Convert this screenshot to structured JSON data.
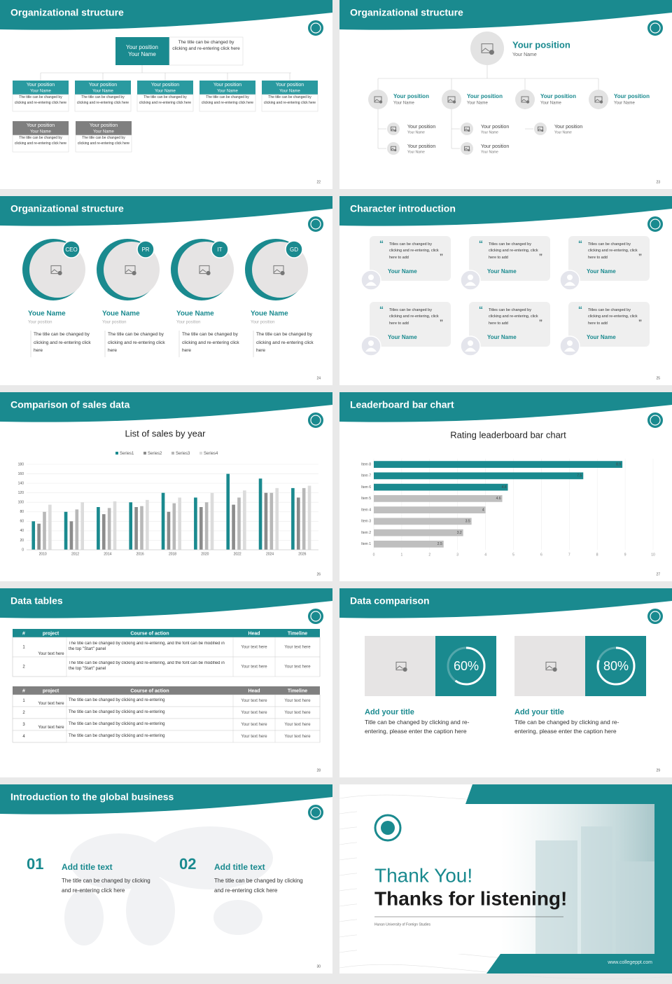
{
  "slides": [
    {
      "title": "Organizational structure",
      "page": 22,
      "head": {
        "position": "Your position",
        "name": "Your Name",
        "note": "The title can be changed by clicking and re-entering click here"
      },
      "teal_boxes": [
        {
          "position": "Your position",
          "name": "Your Name",
          "text": "The title can be changed by clicking and re-entering click here"
        },
        {
          "position": "Your position",
          "name": "Your Name",
          "text": "The title can be changed by clicking and re-entering click here"
        },
        {
          "position": "Your position",
          "name": "Your Name",
          "text": "The title can be changed by clicking and re-entering click here"
        },
        {
          "position": "Your position",
          "name": "Your Name",
          "text": "The title can be changed by clicking and re-entering click here"
        },
        {
          "position": "Your position",
          "name": "Your Name",
          "text": "The title can be changed by clicking and re-entering click here"
        }
      ],
      "gray_boxes": [
        {
          "position": "Your position",
          "name": "Your Name",
          "text": "The title can be changed by clicking and re-entering click here"
        },
        {
          "position": "Your position",
          "name": "Your Name",
          "text": "The title can be changed by clicking and re-entering click here"
        }
      ]
    },
    {
      "title": "Organizational structure",
      "page": 23,
      "head": {
        "position": "Your position",
        "name": "Your Name"
      },
      "level1": [
        {
          "position": "Your position",
          "name": "Your Name"
        },
        {
          "position": "Your position",
          "name": "Your Name"
        },
        {
          "position": "Your position",
          "name": "Your Name"
        },
        {
          "position": "Your position",
          "name": "Your Name"
        }
      ],
      "level2": [
        {
          "position": "Your position",
          "name": "Your Name"
        },
        {
          "position": "Your position",
          "name": "Your Name"
        },
        {
          "position": "Your position",
          "name": "Your Name"
        },
        {
          "position": "Your position",
          "name": "Your Name"
        },
        {
          "position": "Your position",
          "name": "Your Name"
        }
      ]
    },
    {
      "title": "Organizational structure",
      "page": 24,
      "people": [
        {
          "tag": "CEO",
          "name": "Youe Name",
          "position": "Your position",
          "text": "The title can be changed by clicking and re-entering click here"
        },
        {
          "tag": "PR",
          "name": "Youe Name",
          "position": "Your position",
          "text": "The title can be changed by clicking and re-entering click here"
        },
        {
          "tag": "IT",
          "name": "Youe Name",
          "position": "Your position",
          "text": "The title can be changed by clicking and re-entering click here"
        },
        {
          "tag": "GD",
          "name": "Youe Name",
          "position": "Your position",
          "text": "The title can be changed by clicking and re-entering click here"
        }
      ]
    },
    {
      "title": "Character introduction",
      "page": 25,
      "cards": [
        {
          "quote": "Titles can be changed by clicking and re-entering, click here to add",
          "name": "Your Name"
        },
        {
          "quote": "Titles can be changed by clicking and re-entering, click here to add",
          "name": "Your Name"
        },
        {
          "quote": "Titles can be changed by clicking and re-entering, click here to add",
          "name": "Your Name"
        },
        {
          "quote": "Titles can be changed by clicking and re-entering, click here to add",
          "name": "Your Name"
        },
        {
          "quote": "Titles can be changed by clicking and re-entering, click here to add",
          "name": "Your Name"
        },
        {
          "quote": "Titles can be changed by clicking and re-entering, click here to add",
          "name": "Your Name"
        }
      ]
    },
    {
      "title": "Comparison of sales data",
      "page": 26
    },
    {
      "title": "Leaderboard bar chart",
      "page": 27
    },
    {
      "title": "Data tables",
      "page": 28,
      "table1": {
        "header": [
          "#",
          "project",
          "Course of action",
          "Head",
          "Timeline"
        ],
        "groups": [
          {
            "project": "Your text here",
            "rows": [
              [
                1,
                "The title can be changed by clicking and re-entering, and the font can be modified in the top \"Start\" panel",
                "Your text here",
                "Your text here"
              ],
              [
                2,
                "The title can be changed by clicking and re-entering, and the font can be modified in the top \"Start\" panel",
                "Your text here",
                "Your text here"
              ]
            ]
          }
        ]
      },
      "table2": {
        "header": [
          "#",
          "project",
          "Course of action",
          "Head",
          "Timeline"
        ],
        "groups": [
          {
            "project": "Your text here",
            "rows": [
              [
                1,
                "The title can be changed by clicking and re-entering",
                "Your text here",
                "Your text here"
              ],
              [
                2,
                "The title can be changed by clicking and re-entering",
                "Your text here",
                "Your text here"
              ]
            ]
          },
          {
            "project": "Your text here",
            "rows": [
              [
                3,
                "The title can be changed by clicking and re-entering",
                "Your text here",
                "Your text here"
              ],
              [
                4,
                "The title can be changed by clicking and re-entering",
                "Your text here",
                "Your text here"
              ]
            ]
          }
        ]
      }
    },
    {
      "title": "Data comparison",
      "page": 29,
      "items": [
        {
          "percent": {
            "value": 60,
            "label": "60%"
          },
          "title": "Add your title",
          "text": "Title can be changed by clicking and re-entering, please enter the caption here"
        },
        {
          "percent": {
            "value": 80,
            "label": "80%"
          },
          "title": "Add your title",
          "text": "Title can be changed by clicking and re-entering, please enter the caption here"
        }
      ]
    },
    {
      "title": "Introduction to the global business",
      "page": 30,
      "items": [
        {
          "num": "01",
          "title": "Add title text",
          "text": "The title can be changed by clicking and re-entering click here"
        },
        {
          "num": "02",
          "title": "Add title text",
          "text": "The title can be changed by clicking and re-entering click here"
        }
      ]
    },
    {
      "thanks": "Thank You!",
      "subtitle": "Thanks for listening!",
      "org": "Hunan University of Foreign Studies",
      "url": "www.collegeppt.com"
    }
  ],
  "chart_data": [
    {
      "type": "bar",
      "title": "List of sales by year",
      "categories": [
        "2010",
        "2012",
        "2014",
        "2016",
        "2018",
        "2020",
        "2022",
        "2024",
        "2026"
      ],
      "series": [
        {
          "name": "Series1",
          "color": "#1a8a8f",
          "values": [
            60,
            80,
            90,
            100,
            120,
            110,
            160,
            150,
            130
          ]
        },
        {
          "name": "Series2",
          "color": "#8c8c8c",
          "values": [
            55,
            60,
            75,
            90,
            80,
            90,
            95,
            120,
            110
          ]
        },
        {
          "name": "Series3",
          "color": "#b8b8b8",
          "values": [
            80,
            85,
            88,
            92,
            98,
            100,
            110,
            120,
            130
          ]
        },
        {
          "name": "Series4",
          "color": "#dcdcdc",
          "values": [
            95,
            100,
            102,
            105,
            110,
            120,
            125,
            130,
            135
          ]
        }
      ],
      "ylim": [
        0,
        180
      ],
      "yticks": [
        0,
        20,
        40,
        60,
        80,
        100,
        120,
        140,
        160,
        180
      ],
      "grid": true
    },
    {
      "type": "barh",
      "title": "Rating leaderboard bar chart",
      "categories": [
        "Item 1",
        "Item 2",
        "Item 3",
        "Item 4",
        "Item 5",
        "Item 6",
        "Item 7",
        "Item 8"
      ],
      "values": [
        2.5,
        3.2,
        3.5,
        4,
        4.6,
        4.8,
        7.5,
        8.9
      ],
      "colors": [
        "#bfbfbf",
        "#bfbfbf",
        "#bfbfbf",
        "#bfbfbf",
        "#bfbfbf",
        "#1a8a8f",
        "#1a8a8f",
        "#1a8a8f"
      ],
      "xlim": [
        0,
        10
      ],
      "xticks": [
        0,
        1,
        2,
        3,
        4,
        5,
        6,
        7,
        8,
        9,
        10
      ],
      "grid": true
    }
  ]
}
